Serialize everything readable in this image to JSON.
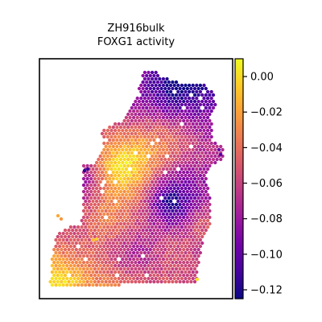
{
  "chart_data": {
    "type": "heatmap",
    "title": "ZH916bulk",
    "subtitle": "FOXG1 activity",
    "xlabel": "",
    "ylabel": "",
    "colormap": "plasma",
    "colorbar": {
      "range": [
        -0.125,
        0.01
      ],
      "ticks": [
        0.0,
        -0.02,
        -0.04,
        -0.06,
        -0.08,
        -0.1,
        -0.12
      ],
      "tick_labels": [
        "0.00",
        "−0.02",
        "−0.04",
        "−0.06",
        "−0.08",
        "−0.10",
        "−0.12"
      ]
    },
    "value_summary": {
      "typical_range": [
        -0.1,
        -0.04
      ],
      "high_values_region": "lower-left",
      "low_values_region": "upper-right and left edge"
    },
    "grid": false
  },
  "colors": {
    "plasma_stops": [
      "#0d0887",
      "#46039f",
      "#7201a8",
      "#9c179e",
      "#bd3786",
      "#d8576b",
      "#ed7953",
      "#fb9f3a",
      "#fdca26",
      "#f0f921"
    ]
  }
}
